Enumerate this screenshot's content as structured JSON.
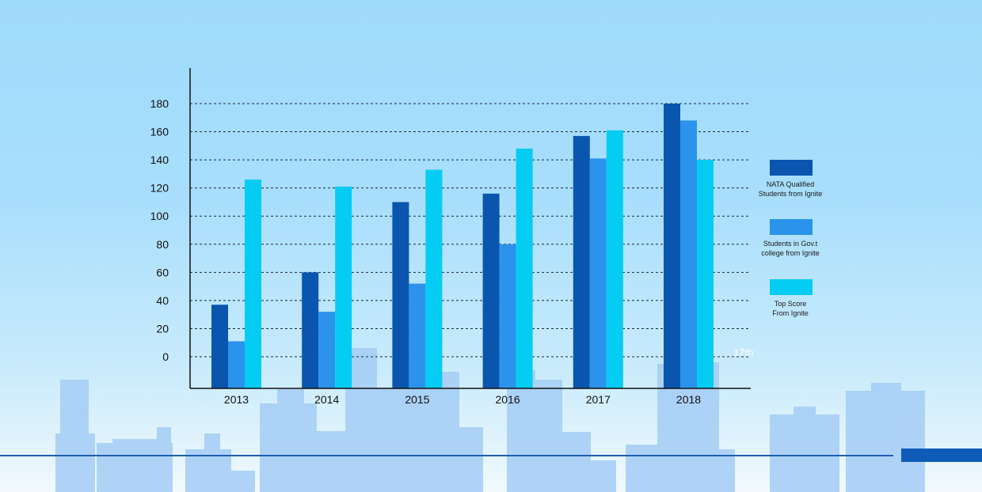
{
  "colors": {
    "background_top": "#9fdbfb",
    "background_bottom": "#f1f9fd",
    "skyline": "#a4cdf5",
    "accent_line": "#1f5eaf",
    "accent_bar": "#0f5cb8"
  },
  "annotation": "17th",
  "chart_data": {
    "type": "bar",
    "title": "",
    "xlabel": "",
    "ylabel": "",
    "categories": [
      "2013",
      "2014",
      "2015",
      "2016",
      "2017",
      "2018"
    ],
    "series": [
      {
        "name": "NATA Qualified Students from Ignite",
        "color": "#0a56ae",
        "values": [
          37,
          60,
          110,
          116,
          157,
          180
        ]
      },
      {
        "name": "Students in Gov.t college from Ignite",
        "color": "#2b93eb",
        "values": [
          11,
          32,
          52,
          80,
          141,
          168
        ]
      },
      {
        "name": "Top Score From Ignite",
        "color": "#05ccf2",
        "values": [
          126,
          121,
          133,
          148,
          161,
          140
        ]
      }
    ],
    "legend_lines": [
      [
        "NATA Qualified",
        "Students from Ignite"
      ],
      [
        "Students in Gov.t",
        "college from Ignite"
      ],
      [
        "Top Score",
        "From Ignite"
      ]
    ],
    "yticks": [
      0,
      20,
      40,
      60,
      80,
      100,
      120,
      140,
      160,
      180
    ],
    "ylim": [
      0,
      180
    ],
    "grid": true,
    "legend_position": "right"
  }
}
